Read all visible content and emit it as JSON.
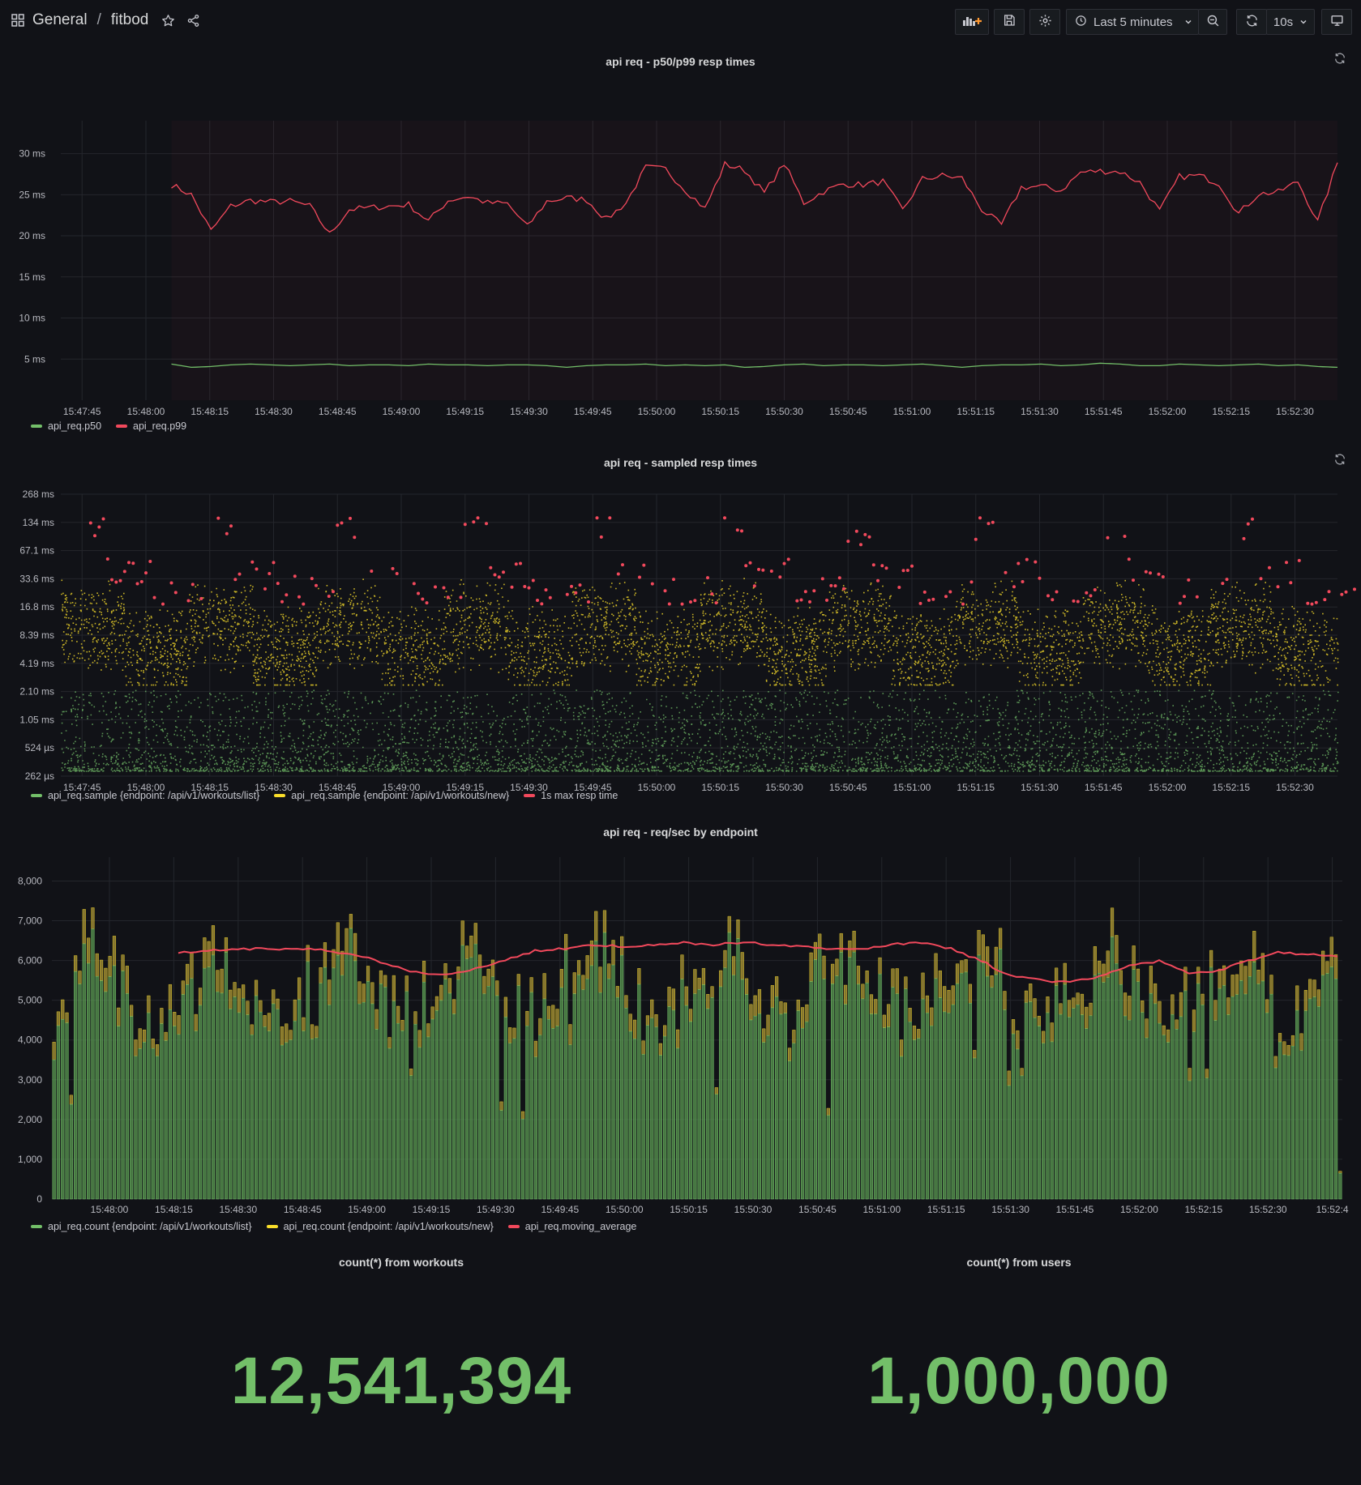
{
  "header": {
    "folder": "General",
    "separator": "/",
    "dashboard": "fitbod",
    "time_range": "Last 5 minutes",
    "refresh": "10s",
    "icons": [
      "apps-icon",
      "star-icon",
      "share-icon",
      "add-panel-icon",
      "save-icon",
      "settings-icon",
      "clock-icon",
      "chevron-down-icon",
      "zoom-out-icon",
      "refresh-icon",
      "chevron-down-icon",
      "tv-icon"
    ]
  },
  "colors": {
    "green": "#73bf69",
    "yellow": "#fade2a",
    "red": "#f2495c",
    "bg": "#111217",
    "grid": "#2a2c33"
  },
  "panels": {
    "p1": {
      "title": "api req - p50/p99 resp times",
      "legend": [
        {
          "label": "api_req.p50",
          "color": "#73bf69"
        },
        {
          "label": "api_req.p99",
          "color": "#f2495c"
        }
      ]
    },
    "p2": {
      "title": "api req - sampled resp times",
      "legend": [
        {
          "label": "api_req.sample {endpoint: /api/v1/workouts/list}",
          "color": "#73bf69"
        },
        {
          "label": "api_req.sample {endpoint: /api/v1/workouts/new}",
          "color": "#fade2a"
        },
        {
          "label": "1s max resp time",
          "color": "#f2495c"
        }
      ]
    },
    "p3": {
      "title": "api req - req/sec by endpoint",
      "legend": [
        {
          "label": "api_req.count {endpoint: /api/v1/workouts/list}",
          "color": "#73bf69"
        },
        {
          "label": "api_req.count {endpoint: /api/v1/workouts/new}",
          "color": "#fade2a"
        },
        {
          "label": "api_req.moving_average",
          "color": "#f2495c"
        }
      ]
    },
    "stat1": {
      "title": "count(*) from workouts",
      "value": "12,541,394"
    },
    "stat2": {
      "title": "count(*) from users",
      "value": "1,000,000"
    }
  },
  "chart_data": [
    {
      "type": "line",
      "title": "api req - p50/p99 resp times",
      "y_ticks": [
        "5 ms",
        "10 ms",
        "15 ms",
        "20 ms",
        "25 ms",
        "30 ms"
      ],
      "ylim": [
        0,
        34
      ],
      "x_ticks": [
        "15:47:45",
        "15:48:00",
        "15:48:15",
        "15:48:30",
        "15:48:45",
        "15:49:00",
        "15:49:15",
        "15:49:30",
        "15:49:45",
        "15:50:00",
        "15:50:15",
        "15:50:30",
        "15:50:45",
        "15:51:00",
        "15:51:15",
        "15:51:30",
        "15:51:45",
        "15:52:00",
        "15:52:15",
        "15:52:30"
      ],
      "xlim": [
        "15:47:40",
        "15:52:40"
      ],
      "series": [
        {
          "name": "api_req.p50",
          "color": "#73bf69",
          "x_start": "15:48:06",
          "x_end": "15:52:40",
          "values": [
            4.4,
            4.0,
            4.1,
            4.3,
            4.4,
            4.3,
            4.2,
            4.3,
            4.4,
            4.2,
            4.3,
            4.3,
            4.2,
            4.4,
            4.3,
            4.3,
            4.2,
            4.3,
            4.3,
            4.2,
            4.0,
            4.2,
            4.3,
            4.3,
            4.4,
            4.2,
            4.3,
            4.2,
            4.3,
            4.0,
            4.1,
            4.3,
            4.4,
            4.2,
            4.3,
            4.3,
            4.2,
            4.3,
            4.4,
            4.2,
            4.0,
            4.2,
            4.3,
            4.3,
            4.4,
            4.2,
            4.3,
            4.5,
            4.4,
            4.2,
            4.2,
            4.4,
            4.3,
            4.2,
            4.3,
            4.4,
            4.2,
            4.3,
            4.1,
            4.0
          ]
        },
        {
          "name": "api_req.p99",
          "color": "#f2495c",
          "x_start": "15:48:06",
          "x_end": "15:52:40",
          "values": [
            26.2,
            25.0,
            20.6,
            23.6,
            24.3,
            24.1,
            24.2,
            23.6,
            20.2,
            23.2,
            23.4,
            23.6,
            23.8,
            21.8,
            24.3,
            24.8,
            24.0,
            23.9,
            21.1,
            24.2,
            24.6,
            24.4,
            22.0,
            24.0,
            28.3,
            28.1,
            25.6,
            23.3,
            28.7,
            28.0,
            25.2,
            28.8,
            24.0,
            25.4,
            26.3,
            26.2,
            26.6,
            23.1,
            26.9,
            27.3,
            27.0,
            23.2,
            21.3,
            25.9,
            26.0,
            25.5,
            27.7,
            27.9,
            27.8,
            26.5,
            23.0,
            27.2,
            27.3,
            26.4,
            22.7,
            25.1,
            25.3,
            26.6,
            21.7,
            28.9
          ]
        }
      ]
    },
    {
      "type": "scatter",
      "title": "api req - sampled resp times",
      "y_scale": "log2",
      "y_ticks": [
        "262 µs",
        "524 µs",
        "1.05 ms",
        "2.10 ms",
        "4.19 ms",
        "8.39 ms",
        "16.8 ms",
        "33.6 ms",
        "67.1 ms",
        "134 ms",
        "268 ms"
      ],
      "x_ticks": [
        "15:47:45",
        "15:48:00",
        "15:48:15",
        "15:48:30",
        "15:48:45",
        "15:49:00",
        "15:49:15",
        "15:49:30",
        "15:49:45",
        "15:50:00",
        "15:50:15",
        "15:50:30",
        "15:50:45",
        "15:51:00",
        "15:51:15",
        "15:51:30",
        "15:51:45",
        "15:52:00",
        "15:52:15",
        "15:52:30"
      ],
      "xlim": [
        "15:47:40",
        "15:52:40"
      ],
      "series": [
        {
          "name": "api_req.sample {endpoint: /api/v1/workouts/list}",
          "color": "#73bf69",
          "y_range_ms": [
            0.3,
            2.2
          ]
        },
        {
          "name": "api_req.sample {endpoint: /api/v1/workouts/new}",
          "color": "#fade2a",
          "y_range_ms": [
            2.5,
            35
          ]
        },
        {
          "name": "1s max resp time",
          "color": "#f2495c",
          "y_range_ms": [
            18,
            150
          ]
        }
      ]
    },
    {
      "type": "bar",
      "title": "api req - req/sec by endpoint",
      "y_ticks": [
        "0",
        "1,000",
        "2,000",
        "3,000",
        "4,000",
        "5,000",
        "6,000",
        "7,000",
        "8,000"
      ],
      "ylim": [
        0,
        8600
      ],
      "x_ticks": [
        "15:48:00",
        "15:48:15",
        "15:48:30",
        "15:48:45",
        "15:49:00",
        "15:49:15",
        "15:49:30",
        "15:49:45",
        "15:50:00",
        "15:50:15",
        "15:50:30",
        "15:50:45",
        "15:51:00",
        "15:51:15",
        "15:51:30",
        "15:51:45",
        "15:52:00",
        "15:52:15",
        "15:52:30",
        "15:52:4"
      ],
      "series": [
        {
          "name": "api_req.count {endpoint: /api/v1/workouts/list}",
          "color": "#73bf69"
        },
        {
          "name": "api_req.count {endpoint: /api/v1/workouts/new}",
          "color": "#fade2a"
        },
        {
          "name": "api_req.moving_average",
          "color": "#f2495c",
          "values": [
            6200,
            6250,
            6300,
            6280,
            6300,
            6250,
            6150,
            5900,
            5700,
            5650,
            5800,
            6000,
            6250,
            6300,
            6400,
            6350,
            6400,
            6450,
            6400,
            6450,
            6400,
            6350,
            6300,
            6300,
            6400,
            6450,
            6300,
            6000,
            5600,
            5500,
            5450,
            5600,
            5850,
            6000,
            5700,
            5750,
            6000,
            6200,
            6150,
            6100
          ]
        }
      ]
    }
  ]
}
